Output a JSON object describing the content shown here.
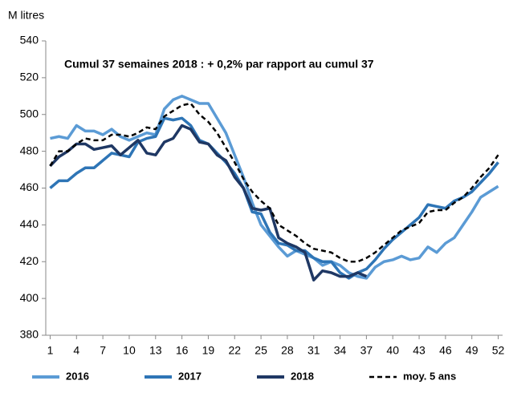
{
  "chart_data": {
    "type": "line",
    "y_axis_label": "M litres",
    "annotation": "Cumul 37 semaines 2018 : + 0,2%  par rapport au cumul 37",
    "x": [
      1,
      2,
      3,
      4,
      5,
      6,
      7,
      8,
      9,
      10,
      11,
      12,
      13,
      14,
      15,
      16,
      17,
      18,
      19,
      20,
      21,
      22,
      23,
      24,
      25,
      26,
      27,
      28,
      29,
      30,
      31,
      32,
      33,
      34,
      35,
      36,
      37,
      38,
      39,
      40,
      41,
      42,
      43,
      44,
      45,
      46,
      47,
      48,
      49,
      50,
      51,
      52
    ],
    "xlim": [
      0.5,
      52.5
    ],
    "xticks": [
      1,
      4,
      7,
      10,
      13,
      16,
      19,
      22,
      25,
      28,
      31,
      34,
      37,
      40,
      43,
      46,
      49,
      52
    ],
    "ylim": [
      380,
      540
    ],
    "yticks": [
      380,
      400,
      420,
      440,
      460,
      480,
      500,
      520,
      540
    ],
    "grid": false,
    "legend": "bottom",
    "series": [
      {
        "name": "2016",
        "color": "#5b9bd5",
        "style": "solid",
        "values": [
          487,
          488,
          487,
          494,
          491,
          491,
          489,
          492,
          488,
          486,
          488,
          490,
          489,
          503,
          508,
          510,
          508,
          506,
          506,
          498,
          490,
          478,
          466,
          452,
          440,
          434,
          428,
          423,
          426,
          424,
          422,
          418,
          420,
          418,
          414,
          412,
          411,
          417,
          420,
          421,
          423,
          421,
          422,
          428,
          425,
          430,
          433,
          440,
          447,
          455,
          458,
          461
        ]
      },
      {
        "name": "2017",
        "color": "#2e75b6",
        "style": "solid",
        "values": [
          460,
          464,
          464,
          468,
          471,
          471,
          475,
          479,
          478,
          477,
          485,
          487,
          488,
          498,
          497,
          498,
          494,
          486,
          484,
          479,
          474,
          468,
          460,
          447,
          446,
          436,
          430,
          429,
          426,
          426,
          422,
          420,
          420,
          414,
          411,
          414,
          416,
          421,
          427,
          432,
          436,
          440,
          444,
          451,
          450,
          449,
          453,
          455,
          458,
          463,
          468,
          474
        ]
      },
      {
        "name": "2018",
        "color": "#1f3864",
        "style": "solid",
        "values": [
          472,
          477,
          480,
          484,
          484,
          481,
          482,
          483,
          478,
          482,
          486,
          479,
          478,
          485,
          487,
          494,
          492,
          485,
          484,
          478,
          475,
          466,
          460,
          449,
          448,
          449,
          433,
          430,
          428,
          425,
          410,
          415,
          414,
          412,
          412,
          414,
          412,
          null,
          null,
          null,
          null,
          null,
          null,
          null,
          null,
          null,
          null,
          null,
          null,
          null,
          null,
          null
        ]
      },
      {
        "name": "moy. 5 ans",
        "color": "#000000",
        "style": "dashed",
        "values": [
          472,
          480,
          480,
          484,
          487,
          486,
          486,
          489,
          489,
          488,
          490,
          493,
          492,
          499,
          502,
          505,
          506,
          500,
          496,
          490,
          482,
          474,
          465,
          458,
          453,
          449,
          440,
          437,
          434,
          430,
          427,
          426,
          425,
          422,
          420,
          420,
          422,
          425,
          429,
          433,
          437,
          439,
          441,
          447,
          448,
          448,
          452,
          455,
          460,
          466,
          471,
          478
        ]
      }
    ]
  }
}
